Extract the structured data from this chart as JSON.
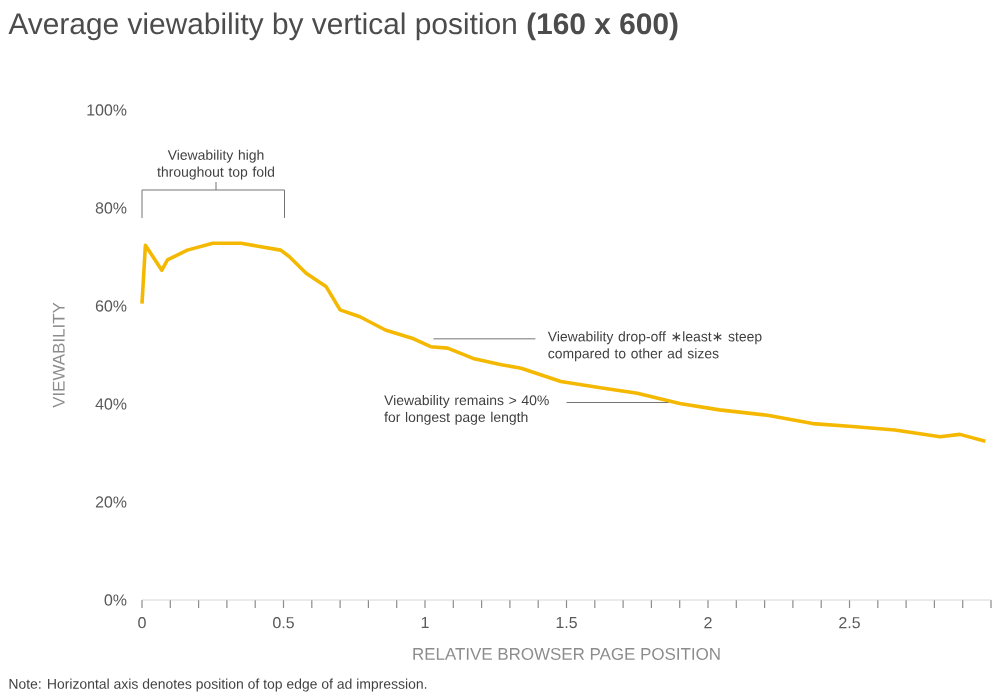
{
  "chart_data": {
    "type": "line",
    "title": "Average viewability by vertical position **(160 x 600)**",
    "xlabel": "RELATIVE BROWSER PAGE POSITION",
    "ylabel": "VIEWABILITY",
    "x": [
      0,
      0.012,
      0.07,
      0.09,
      0.16,
      0.25,
      0.35,
      0.42,
      0.49,
      0.52,
      0.58,
      0.65,
      0.7,
      0.77,
      0.86,
      0.96,
      1.02,
      1.08,
      1.17,
      1.27,
      1.34,
      1.48,
      1.62,
      1.75,
      1.9,
      2.04,
      2.21,
      2.37,
      2.51,
      2.66,
      2.82,
      2.89,
      2.98
    ],
    "series": [
      {
        "color": "#f5b800",
        "values": [
          60.5,
          72.4,
          67.3,
          69.4,
          71.4,
          72.8,
          72.8,
          72.1,
          71.4,
          70.1,
          66.7,
          64.0,
          59.2,
          57.8,
          55.1,
          53.3,
          51.7,
          51.4,
          49.3,
          48.0,
          47.3,
          44.6,
          43.3,
          42.2,
          40.1,
          38.8,
          37.7,
          36.0,
          35.4,
          34.7,
          33.3,
          33.8,
          32.4
        ]
      }
    ],
    "xlim": [
      0,
      3
    ],
    "xticks": [
      0,
      {
        "value": 0.1,
        "label": null
      },
      {
        "value": 0.2,
        "label": null
      },
      {
        "value": 0.3,
        "label": null
      },
      {
        "value": 0.4,
        "label": null
      },
      0.5,
      {
        "value": 0.6,
        "label": null
      },
      {
        "value": 0.7,
        "label": null
      },
      {
        "value": 0.8,
        "label": null
      },
      {
        "value": 0.9,
        "label": null
      },
      1,
      {
        "value": 1.1,
        "label": null
      },
      {
        "value": 1.2,
        "label": null
      },
      {
        "value": 1.3,
        "label": null
      },
      {
        "value": 1.4,
        "label": null
      },
      1.5,
      {
        "value": 1.6,
        "label": null
      },
      {
        "value": 1.7,
        "label": null
      },
      {
        "value": 1.8,
        "label": null
      },
      {
        "value": 1.9,
        "label": null
      },
      2,
      {
        "value": 2.1,
        "label": null
      },
      {
        "value": 2.2,
        "label": null
      },
      {
        "value": 2.3,
        "label": null
      },
      {
        "value": 2.4,
        "label": null
      },
      2.5,
      {
        "value": 2.6,
        "label": null
      },
      {
        "value": 2.7,
        "label": null
      },
      {
        "value": 2.8,
        "label": null
      },
      {
        "value": 2.9,
        "label": null
      },
      {
        "value": 3,
        "label": null
      }
    ],
    "ylim": [
      0,
      100
    ],
    "yticks": [
      {
        "value": 0,
        "label": "0%"
      },
      {
        "value": 20,
        "label": "20%"
      },
      {
        "value": 40,
        "label": "40%"
      },
      {
        "value": 60,
        "label": "60%"
      },
      {
        "value": 80,
        "label": "80%"
      },
      {
        "value": 100,
        "label": "100%"
      }
    ],
    "annotations": [
      "Viewability high throughout top fold",
      {
        "text": "Viewability drop-off ∗least∗ steep compared to other ad sizes",
        "x": 1.03,
        "y": 53.3
      },
      {
        "text": "Viewability remains > 40% for longest page length",
        "x": 1.86,
        "y": 40.3
      },
      "Note: Horizontal axis denotes position of top edge of ad impression."
    ]
  }
}
